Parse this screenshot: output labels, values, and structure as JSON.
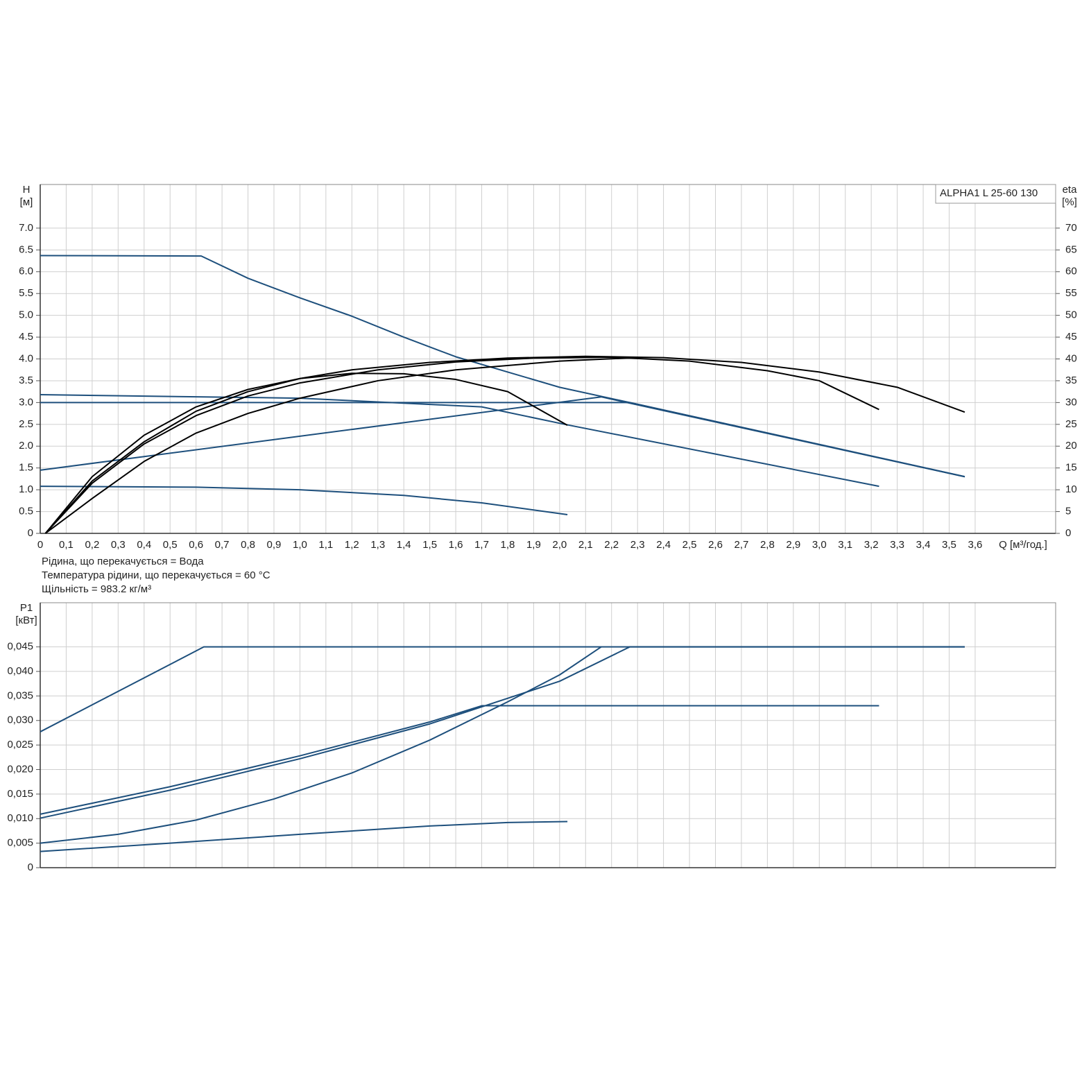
{
  "chart_data": [
    {
      "type": "line",
      "title": "ALPHA1 L 25-60  130",
      "ylabel": "H",
      "yunit": "[м]",
      "y2label": "eta",
      "y2unit": "[%]",
      "xlabel": "Q [м³/год.]",
      "notes": [
        "Рідина, що перекачується = Вода",
        "Температура рідини, що перекачується = 60 °C",
        "Щільність = 983.2 кг/м³"
      ],
      "grid": true,
      "xlim": [
        0,
        3.91
      ],
      "ylim": [
        0,
        8
      ],
      "y2lim": [
        0,
        80
      ],
      "xticks": [
        0,
        {
          "value": 0.1,
          "label": "0,1"
        },
        {
          "value": 0.2,
          "label": "0,2"
        },
        {
          "value": 0.3,
          "label": "0,3"
        },
        {
          "value": 0.4,
          "label": "0,4"
        },
        {
          "value": 0.5,
          "label": "0,5"
        },
        {
          "value": 0.6,
          "label": "0,6"
        },
        {
          "value": 0.7,
          "label": "0,7"
        },
        {
          "value": 0.8,
          "label": "0,8"
        },
        {
          "value": 0.9,
          "label": "0,9"
        },
        {
          "value": 1.0,
          "label": "1,0"
        },
        {
          "value": 1.1,
          "label": "1,1"
        },
        {
          "value": 1.2,
          "label": "1,2"
        },
        {
          "value": 1.3,
          "label": "1,3"
        },
        {
          "value": 1.4,
          "label": "1,4"
        },
        {
          "value": 1.5,
          "label": "1,5"
        },
        {
          "value": 1.6,
          "label": "1,6"
        },
        {
          "value": 1.7,
          "label": "1,7"
        },
        {
          "value": 1.8,
          "label": "1,8"
        },
        {
          "value": 1.9,
          "label": "1,9"
        },
        {
          "value": 2.0,
          "label": "2,0"
        },
        {
          "value": 2.1,
          "label": "2,1"
        },
        {
          "value": 2.2,
          "label": "2,2"
        },
        {
          "value": 2.3,
          "label": "2,3"
        },
        {
          "value": 2.4,
          "label": "2,4"
        },
        {
          "value": 2.5,
          "label": "2,5"
        },
        {
          "value": 2.6,
          "label": "2,6"
        },
        {
          "value": 2.7,
          "label": "2,7"
        },
        {
          "value": 2.8,
          "label": "2,8"
        },
        {
          "value": 2.9,
          "label": "2,9"
        },
        {
          "value": 3.0,
          "label": "3,0"
        },
        {
          "value": 3.1,
          "label": "3,1"
        },
        {
          "value": 3.2,
          "label": "3,2"
        },
        {
          "value": 3.3,
          "label": "3,3"
        },
        {
          "value": 3.4,
          "label": "3,4"
        },
        {
          "value": 3.5,
          "label": "3,5"
        },
        {
          "value": 3.6,
          "label": "3,6"
        }
      ],
      "yticks": [
        0,
        0.5,
        {
          "value": 1,
          "label": "1.0"
        },
        1.5,
        {
          "value": 2,
          "label": "2.0"
        },
        2.5,
        {
          "value": 3,
          "label": "3.0"
        },
        3.5,
        {
          "value": 4,
          "label": "4.0"
        },
        4.5,
        {
          "value": 5,
          "label": "5.0"
        },
        5.5,
        {
          "value": 6,
          "label": "6.0"
        },
        6.5,
        {
          "value": 7,
          "label": "7.0"
        }
      ],
      "y2ticks": [
        0,
        5,
        10,
        15,
        20,
        25,
        30,
        35,
        40,
        45,
        50,
        55,
        60,
        65,
        70
      ],
      "series": [
        {
          "color": "#1d4f7c",
          "axis": "y",
          "x": [
            0,
            0.62,
            0.8,
            1.0,
            1.2,
            1.4,
            1.6,
            2.0,
            2.27,
            3.0,
            3.56
          ],
          "values": [
            6.37,
            6.36,
            5.85,
            5.4,
            4.98,
            4.5,
            4.05,
            3.35,
            3.0,
            2.04,
            1.3
          ]
        },
        {
          "color": "#1d4f7c",
          "axis": "y",
          "x": [
            0,
            2.27,
            3.56
          ],
          "values": [
            3.0,
            3.0,
            1.3
          ]
        },
        {
          "color": "#1d4f7c",
          "axis": "y",
          "x": [
            0,
            2.16,
            3.56
          ],
          "values": [
            1.45,
            3.13,
            1.3
          ]
        },
        {
          "color": "#1d4f7c",
          "axis": "y",
          "x": [
            0,
            1.0,
            1.7,
            2.02,
            3.23
          ],
          "values": [
            3.18,
            3.1,
            2.9,
            2.5,
            1.08
          ]
        },
        {
          "color": "#1d4f7c",
          "axis": "y",
          "x": [
            0,
            0.6,
            1.0,
            1.4,
            1.7,
            2.03
          ],
          "values": [
            1.08,
            1.06,
            1.0,
            0.87,
            0.7,
            0.43
          ]
        },
        {
          "color": "#000000",
          "axis": "y2",
          "x": [
            0.02,
            0.2,
            0.4,
            0.6,
            0.8,
            1.0,
            1.2,
            1.5,
            1.8,
            2.1,
            2.4,
            2.7,
            3.0,
            3.3,
            3.56
          ],
          "values": [
            0,
            12,
            21,
            28,
            32.5,
            35.5,
            37.5,
            39.2,
            40.2,
            40.6,
            40.3,
            39.2,
            37,
            33.5,
            27.8
          ]
        },
        {
          "color": "#000000",
          "axis": "y2",
          "x": [
            0.02,
            0.2,
            0.4,
            0.6,
            0.8,
            1.0,
            1.3,
            1.6,
            1.9,
            2.2,
            2.5,
            2.8,
            3.0,
            3.23
          ],
          "values": [
            0,
            11.5,
            20.5,
            27,
            31.5,
            34.5,
            37.5,
            39.3,
            40.2,
            40.4,
            39.5,
            37.3,
            35,
            28.4
          ]
        },
        {
          "color": "#000000",
          "axis": "y2",
          "x": [
            0.02,
            0.2,
            0.4,
            0.6,
            0.8,
            1.0,
            1.2,
            1.4,
            1.6,
            1.8,
            2.03
          ],
          "values": [
            0,
            13,
            22.5,
            29,
            33,
            35.5,
            36.7,
            36.6,
            35.3,
            32.5,
            24.8
          ]
        },
        {
          "color": "#000000",
          "axis": "y2",
          "x": [
            0.02,
            0.2,
            0.4,
            0.6,
            0.8,
            1.0,
            1.3,
            1.6,
            2.0,
            2.3
          ],
          "values": [
            0,
            8,
            16.5,
            23,
            27.5,
            31,
            35,
            37.5,
            39.5,
            40.3
          ]
        }
      ]
    },
    {
      "type": "line",
      "ylabel": "P1",
      "yunit": "[кВт]",
      "grid": true,
      "xlim": [
        0,
        3.91
      ],
      "ylim": [
        0,
        0.054
      ],
      "yticks": [
        0,
        {
          "value": 0.005,
          "label": "0,005"
        },
        {
          "value": 0.01,
          "label": "0,010"
        },
        {
          "value": 0.015,
          "label": "0,015"
        },
        {
          "value": 0.02,
          "label": "0,020"
        },
        {
          "value": 0.025,
          "label": "0,025"
        },
        {
          "value": 0.03,
          "label": "0,030"
        },
        {
          "value": 0.035,
          "label": "0,035"
        },
        {
          "value": 0.04,
          "label": "0,040"
        },
        {
          "value": 0.045,
          "label": "0,045"
        }
      ],
      "series": [
        {
          "color": "#1d4f7c",
          "x": [
            0,
            0.63,
            3.56
          ],
          "values": [
            0.0277,
            0.045,
            0.045
          ]
        },
        {
          "color": "#1d4f7c",
          "x": [
            0,
            0.5,
            1.0,
            1.5,
            2.0,
            2.27,
            3.56
          ],
          "values": [
            0.0101,
            0.0158,
            0.0222,
            0.0293,
            0.038,
            0.045,
            0.045
          ]
        },
        {
          "color": "#1d4f7c",
          "x": [
            0,
            0.5,
            1.0,
            1.5,
            1.7,
            3.23
          ],
          "values": [
            0.0109,
            0.0165,
            0.0228,
            0.0297,
            0.033,
            0.033
          ]
        },
        {
          "color": "#1d4f7c",
          "x": [
            0,
            0.3,
            0.6,
            0.9,
            1.2,
            1.5,
            1.8,
            2.0,
            2.16
          ],
          "values": [
            0.005,
            0.0068,
            0.0097,
            0.014,
            0.0193,
            0.026,
            0.0338,
            0.0393,
            0.045
          ]
        },
        {
          "color": "#1d4f7c",
          "x": [
            0,
            0.5,
            1.0,
            1.5,
            1.8,
            2.03
          ],
          "values": [
            0.0033,
            0.005,
            0.0068,
            0.0085,
            0.0092,
            0.0094
          ]
        }
      ]
    }
  ]
}
